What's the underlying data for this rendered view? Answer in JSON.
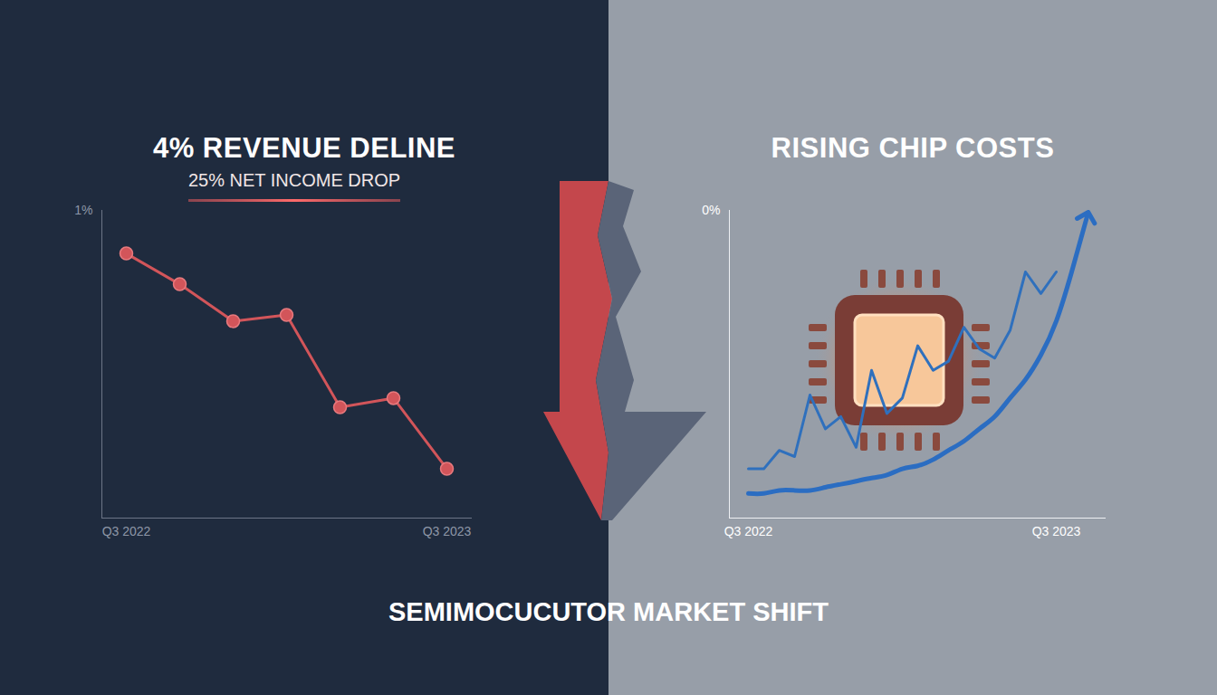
{
  "chart_data": [
    {
      "type": "line",
      "title": "4% REVENUE DELINE",
      "subtitle": "25% NET INCOME DROP",
      "categories": [
        "Q3 2022",
        null,
        null,
        null,
        null,
        null,
        "Q3 2023"
      ],
      "values": [
        0.86,
        0.76,
        0.64,
        0.66,
        0.36,
        0.39,
        0.16
      ],
      "color": "#d2555a",
      "marker": "circle",
      "ylim": [
        0,
        1
      ],
      "yticks": [
        {
          "value": 1,
          "label": "1%"
        }
      ],
      "grid": false
    },
    {
      "type": "line",
      "title": "RISING CHIP COSTS",
      "categories": [
        "Q3 2022",
        null,
        null,
        null,
        null,
        null,
        null,
        null,
        null,
        null,
        null,
        null,
        null,
        null,
        null,
        null,
        null,
        null,
        null,
        null,
        "Q3 2023",
        null,
        null
      ],
      "series": [
        {
          "color": "#2f70bd",
          "line_style": "solid",
          "values": [
            -0.84,
            -0.84,
            -0.78,
            -0.8,
            -0.6,
            -0.71,
            -0.67,
            -0.77,
            -0.52,
            -0.66,
            -0.61,
            -0.44,
            -0.52,
            -0.49,
            -0.38,
            -0.45,
            -0.48,
            -0.39,
            -0.2,
            -0.27,
            -0.2,
            null,
            null
          ]
        },
        {
          "color": "#2b6dc2",
          "line_style": "smooth",
          "marker": "arrow",
          "values": [
            -0.92,
            -0.92,
            -0.91,
            -0.91,
            -0.91,
            -0.9,
            -0.89,
            -0.88,
            -0.87,
            -0.86,
            -0.84,
            -0.83,
            -0.81,
            -0.78,
            -0.75,
            -0.71,
            -0.67,
            -0.61,
            -0.55,
            -0.47,
            -0.36,
            -0.2,
            -0.02
          ]
        }
      ],
      "ylim": [
        -1,
        0
      ],
      "yticks": [
        {
          "value": 0,
          "label": "0%"
        }
      ],
      "grid": false
    }
  ],
  "caption": "SEMIMOCUCUTOR MARKET SHIFT"
}
